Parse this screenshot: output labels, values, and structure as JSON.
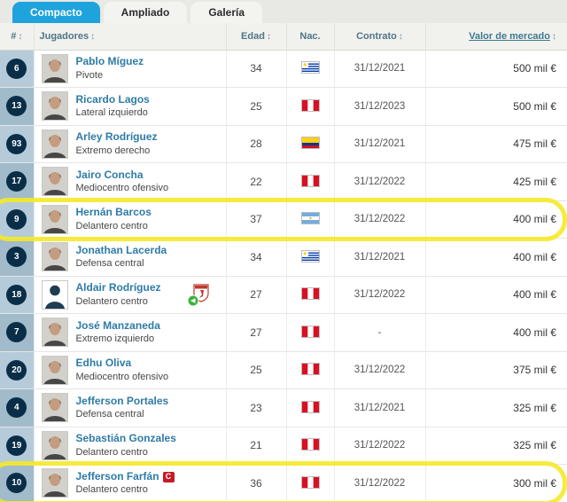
{
  "tabs": [
    {
      "label": "Compacto",
      "active": true
    },
    {
      "label": "Ampliado",
      "active": false
    },
    {
      "label": "Galería",
      "active": false
    }
  ],
  "table": {
    "headers": {
      "number": "#",
      "players": "Jugadores",
      "age": "Edad",
      "nationality": "Nac.",
      "contract": "Contrato",
      "market_value": "Valor de mercado"
    },
    "sort_glyph": "↕",
    "rows": [
      {
        "number": "6",
        "name": "Pablo Míguez",
        "position": "Pivote",
        "age": "34",
        "nationality": "Uruguay",
        "contract": "31/12/2021",
        "value": "500 mil €"
      },
      {
        "number": "13",
        "name": "Ricardo Lagos",
        "position": "Lateral izquierdo",
        "age": "25",
        "nationality": "Peru",
        "contract": "31/12/2023",
        "value": "500 mil €"
      },
      {
        "number": "93",
        "name": "Arley Rodríguez",
        "position": "Extremo derecho",
        "age": "28",
        "nationality": "Colombia",
        "contract": "31/12/2021",
        "value": "475 mil €"
      },
      {
        "number": "17",
        "name": "Jairo Concha",
        "position": "Mediocentro ofensivo",
        "age": "22",
        "nationality": "Peru",
        "contract": "31/12/2022",
        "value": "425 mil €"
      },
      {
        "number": "9",
        "name": "Hernán Barcos",
        "position": "Delantero centro",
        "age": "37",
        "nationality": "Argentina",
        "contract": "31/12/2022",
        "value": "400 mil €",
        "highlighted": true
      },
      {
        "number": "3",
        "name": "Jonathan Lacerda",
        "position": "Defensa central",
        "age": "34",
        "nationality": "Uruguay",
        "contract": "31/12/2021",
        "value": "400 mil €"
      },
      {
        "number": "18",
        "name": "Aldair Rodríguez",
        "position": "Delantero centro",
        "age": "27",
        "nationality": "Peru",
        "contract": "31/12/2022",
        "value": "400 mil €",
        "placeholder_photo": true,
        "transfer_icon": true
      },
      {
        "number": "7",
        "name": "José Manzaneda",
        "position": "Extremo izquierdo",
        "age": "27",
        "nationality": "Peru",
        "contract": "-",
        "value": "400 mil €"
      },
      {
        "number": "20",
        "name": "Edhu Oliva",
        "position": "Mediocentro ofensivo",
        "age": "25",
        "nationality": "Peru",
        "contract": "31/12/2022",
        "value": "375 mil €"
      },
      {
        "number": "4",
        "name": "Jefferson Portales",
        "position": "Defensa central",
        "age": "23",
        "nationality": "Peru",
        "contract": "31/12/2021",
        "value": "325 mil €"
      },
      {
        "number": "19",
        "name": "Sebastián Gonzales",
        "position": "Delantero centro",
        "age": "21",
        "nationality": "Peru",
        "contract": "31/12/2022",
        "value": "325 mil €"
      },
      {
        "number": "10",
        "name": "Jefferson Farfán",
        "position": "Delantero centro",
        "age": "36",
        "nationality": "Peru",
        "contract": "31/12/2022",
        "value": "300 mil €",
        "captain_icon": true,
        "highlighted": true
      }
    ]
  },
  "colors": {
    "active_tab": "#1fa3dc",
    "badge": "#0a2e47",
    "name_link": "#2e7ba6",
    "highlight_marker": "#f5e823",
    "captain_badge": "#c51926"
  },
  "flag_colors": {
    "Uruguay": {
      "stripe_blue": "#0038a8",
      "white": "#ffffff",
      "sun": "#fcd116"
    },
    "Peru": {
      "red": "#d91023",
      "white": "#ffffff"
    },
    "Colombia": {
      "yellow": "#fcd116",
      "blue": "#003893",
      "red": "#ce1126"
    },
    "Argentina": {
      "lightblue": "#74acdf",
      "white": "#ffffff",
      "sun": "#f6b40e"
    }
  }
}
